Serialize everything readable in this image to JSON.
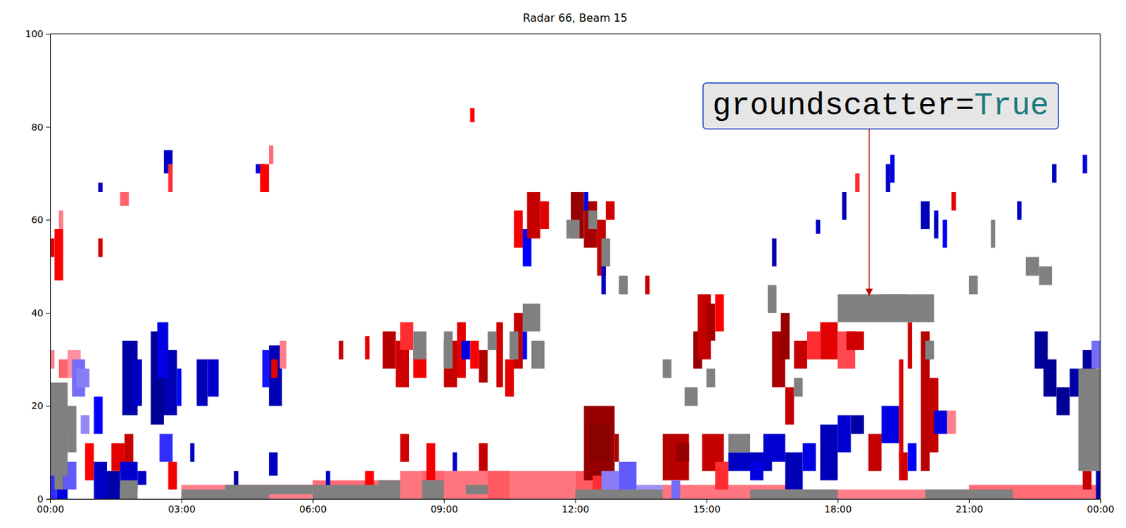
{
  "chart_data": {
    "type": "range-time",
    "title": "Radar 66, Beam 15",
    "xlim": [
      0,
      24
    ],
    "xticks": [
      {
        "value": 0,
        "label": "00:00"
      },
      {
        "value": 3,
        "label": "03:00"
      },
      {
        "value": 6,
        "label": "06:00"
      },
      {
        "value": 9,
        "label": "09:00"
      },
      {
        "value": 12,
        "label": "12:00"
      },
      {
        "value": 15,
        "label": "15:00"
      },
      {
        "value": 18,
        "label": "18:00"
      },
      {
        "value": 21,
        "label": "21:00"
      },
      {
        "value": 24,
        "label": "00:00"
      }
    ],
    "ylim": [
      0,
      100
    ],
    "yticks": [
      0,
      20,
      40,
      60,
      80,
      100
    ],
    "zlim": [
      -400,
      400
    ],
    "cells": [
      [
        3,
        6,
        0,
        3,
        60
      ],
      [
        6,
        8,
        0,
        4,
        80
      ],
      [
        8,
        12,
        0,
        6,
        70
      ],
      [
        12,
        12.5,
        0,
        6,
        100
      ],
      [
        14,
        17,
        0,
        3,
        70
      ],
      [
        17,
        21,
        0,
        2,
        60
      ],
      [
        21,
        24,
        0,
        3,
        80
      ],
      [
        8.5,
        9,
        2,
        6,
        90
      ],
      [
        10,
        10.5,
        0,
        6,
        100
      ],
      [
        0,
        0.5,
        14,
        20,
        50
      ],
      [
        0.4,
        0.7,
        26,
        32,
        40
      ],
      [
        0.7,
        0.9,
        14,
        18,
        -50
      ],
      [
        0,
        0.15,
        0,
        10,
        -150
      ],
      [
        0,
        0.3,
        10,
        14,
        120
      ],
      [
        0.15,
        0.4,
        0,
        6,
        -250
      ],
      [
        0.3,
        0.6,
        2,
        8,
        -100
      ],
      [
        0.5,
        0.8,
        22,
        30,
        -80
      ],
      [
        0.6,
        0.9,
        24,
        28,
        -60
      ],
      [
        0.8,
        1.0,
        4,
        12,
        200
      ],
      [
        1.0,
        1.3,
        0,
        8,
        -300
      ],
      [
        1.0,
        1.2,
        14,
        22,
        -200
      ],
      [
        1.3,
        1.6,
        0,
        6,
        -350
      ],
      [
        1.4,
        1.7,
        6,
        12,
        250
      ],
      [
        1.6,
        2.0,
        2,
        8,
        -280
      ],
      [
        1.7,
        1.9,
        8,
        14,
        300
      ],
      [
        0,
        0.1,
        28,
        32,
        60
      ],
      [
        0.2,
        0.4,
        26,
        30,
        90
      ],
      [
        2.0,
        2.2,
        3,
        6,
        -300
      ],
      [
        0,
        0.1,
        52,
        56,
        250
      ],
      [
        0.1,
        0.3,
        47,
        58,
        200
      ],
      [
        0.2,
        0.3,
        58,
        62,
        60
      ],
      [
        1.1,
        1.2,
        52,
        56,
        280
      ],
      [
        1.1,
        1.2,
        66,
        68,
        -320
      ],
      [
        1.6,
        1.8,
        63,
        66,
        90
      ],
      [
        2.6,
        2.8,
        70,
        75,
        -300
      ],
      [
        2.7,
        2.8,
        66,
        72,
        150
      ],
      [
        4.7,
        4.9,
        70,
        72,
        -250
      ],
      [
        4.8,
        5.0,
        66,
        72,
        200
      ],
      [
        5.0,
        5.1,
        72,
        76,
        80
      ],
      [
        1.65,
        2.0,
        18,
        34,
        -350
      ],
      [
        1.9,
        2.1,
        20,
        30,
        -300
      ],
      [
        2.3,
        2.6,
        16,
        36,
        -380
      ],
      [
        2.6,
        2.9,
        18,
        32,
        -330
      ],
      [
        2.45,
        2.7,
        26,
        38,
        -250
      ],
      [
        2.9,
        3.0,
        20,
        28,
        -200
      ],
      [
        3.35,
        3.6,
        20,
        30,
        -320
      ],
      [
        3.6,
        3.85,
        22,
        30,
        -280
      ],
      [
        4.85,
        5.0,
        24,
        32,
        -180
      ],
      [
        5.0,
        5.3,
        20,
        33,
        -330
      ],
      [
        5.05,
        5.2,
        26,
        30,
        250
      ],
      [
        5.25,
        5.4,
        28,
        34,
        60
      ],
      [
        2.5,
        2.8,
        8,
        14,
        -150
      ],
      [
        2.7,
        2.9,
        2,
        8,
        220
      ],
      [
        3.2,
        3.3,
        8,
        12,
        -300
      ],
      [
        4.2,
        4.3,
        2,
        6,
        -350
      ],
      [
        5.0,
        5.2,
        5,
        10,
        -300
      ],
      [
        6.3,
        6.4,
        2,
        6,
        -300
      ],
      [
        6.6,
        6.7,
        30,
        34,
        300
      ],
      [
        7.2,
        7.3,
        30,
        35,
        250
      ],
      [
        7.6,
        7.9,
        28,
        36,
        320
      ],
      [
        7.9,
        8.2,
        24,
        34,
        280
      ],
      [
        8.0,
        8.3,
        32,
        38,
        150
      ],
      [
        8.3,
        8.6,
        26,
        32,
        220
      ],
      [
        9.0,
        9.3,
        24,
        34,
        300
      ],
      [
        9.3,
        9.5,
        26,
        38,
        250
      ],
      [
        9.6,
        9.8,
        28,
        34,
        200
      ],
      [
        9.8,
        10.0,
        25,
        32,
        330
      ],
      [
        10.2,
        10.35,
        24,
        38,
        280
      ],
      [
        10.4,
        10.6,
        22,
        30,
        250
      ],
      [
        10.6,
        10.8,
        28,
        40,
        300
      ],
      [
        10.8,
        10.9,
        30,
        36,
        -200
      ],
      [
        9.4,
        9.6,
        30,
        34,
        -250
      ],
      [
        8.0,
        8.2,
        8,
        14,
        280
      ],
      [
        8.6,
        8.8,
        4,
        12,
        220
      ],
      [
        9.2,
        9.3,
        6,
        10,
        -300
      ],
      [
        9.8,
        10.0,
        6,
        12,
        300
      ],
      [
        7.2,
        7.4,
        2,
        6,
        200
      ],
      [
        9.6,
        9.7,
        81,
        84,
        200
      ],
      [
        10.6,
        10.8,
        54,
        62,
        220
      ],
      [
        10.8,
        11.0,
        50,
        58,
        -200
      ],
      [
        10.9,
        11.2,
        56,
        66,
        300
      ],
      [
        11.2,
        11.4,
        58,
        64,
        250
      ],
      [
        11.9,
        12.2,
        56,
        66,
        380
      ],
      [
        12.2,
        12.5,
        54,
        64,
        350
      ],
      [
        12.5,
        12.7,
        48,
        60,
        300
      ],
      [
        12.6,
        12.7,
        44,
        50,
        -300
      ],
      [
        12.7,
        12.9,
        60,
        64,
        280
      ],
      [
        12.2,
        12.3,
        62,
        66,
        -250
      ],
      [
        12.2,
        12.9,
        4,
        20,
        380
      ],
      [
        12.3,
        12.8,
        8,
        16,
        400
      ],
      [
        12.9,
        13.0,
        8,
        14,
        350
      ],
      [
        12.4,
        12.7,
        0,
        5,
        150
      ],
      [
        12.6,
        13.4,
        0,
        6,
        -60
      ],
      [
        13.0,
        13.4,
        2,
        8,
        -100
      ],
      [
        13.4,
        14.0,
        0,
        3,
        -40
      ],
      [
        13.6,
        13.7,
        44,
        48,
        300
      ],
      [
        14.0,
        14.6,
        4,
        14,
        320
      ],
      [
        14.3,
        14.6,
        8,
        12,
        380
      ],
      [
        14.7,
        14.9,
        28,
        36,
        380
      ],
      [
        14.8,
        15.1,
        30,
        44,
        300
      ],
      [
        15.0,
        15.2,
        34,
        42,
        350
      ],
      [
        15.2,
        15.4,
        36,
        44,
        200
      ],
      [
        14.9,
        15.4,
        6,
        14,
        300
      ],
      [
        15.2,
        15.5,
        2,
        8,
        150
      ],
      [
        14.2,
        14.4,
        0,
        4,
        -80
      ],
      [
        15.5,
        16.5,
        6,
        10,
        -300
      ],
      [
        16.0,
        16.3,
        4,
        8,
        -250
      ],
      [
        16.3,
        16.8,
        8,
        14,
        -280
      ],
      [
        16.8,
        17.2,
        2,
        10,
        -320
      ],
      [
        17.2,
        17.5,
        6,
        12,
        -250
      ],
      [
        16.5,
        16.8,
        24,
        36,
        350
      ],
      [
        16.7,
        16.9,
        30,
        40,
        380
      ],
      [
        17.0,
        17.3,
        28,
        34,
        300
      ],
      [
        17.3,
        17.6,
        30,
        36,
        150
      ],
      [
        17.6,
        18.0,
        30,
        38,
        250
      ],
      [
        18.0,
        18.4,
        28,
        36,
        120
      ],
      [
        18.2,
        18.6,
        32,
        36,
        280
      ],
      [
        16.8,
        17.0,
        16,
        24,
        300
      ],
      [
        17.6,
        18.0,
        4,
        16,
        -320
      ],
      [
        18.0,
        18.3,
        10,
        18,
        -280
      ],
      [
        18.3,
        18.6,
        14,
        18,
        -350
      ],
      [
        18.7,
        19.0,
        6,
        14,
        300
      ],
      [
        19.0,
        19.4,
        12,
        20,
        -250
      ],
      [
        19.4,
        19.6,
        4,
        10,
        280
      ],
      [
        19.6,
        19.8,
        6,
        12,
        -200
      ],
      [
        19.9,
        20.1,
        6,
        36,
        320
      ],
      [
        20.1,
        20.3,
        10,
        26,
        300
      ],
      [
        20.2,
        20.5,
        14,
        19,
        -250
      ],
      [
        20.5,
        20.7,
        14,
        19,
        60
      ],
      [
        19.6,
        19.7,
        28,
        38,
        280
      ],
      [
        19.4,
        19.5,
        8,
        30,
        260
      ],
      [
        16.5,
        16.6,
        50,
        56,
        -350
      ],
      [
        17.5,
        17.6,
        57,
        60,
        -300
      ],
      [
        18.1,
        18.2,
        60,
        66,
        -330
      ],
      [
        19.1,
        19.2,
        66,
        72,
        -300
      ],
      [
        19.2,
        19.3,
        68,
        74,
        -250
      ],
      [
        19.9,
        20.1,
        58,
        64,
        -320
      ],
      [
        20.2,
        20.3,
        56,
        62,
        -300
      ],
      [
        20.4,
        20.5,
        54,
        60,
        -200
      ],
      [
        22.1,
        22.2,
        60,
        64,
        -300
      ],
      [
        22.9,
        23.0,
        68,
        72,
        -300
      ],
      [
        23.6,
        23.7,
        70,
        74,
        -250
      ],
      [
        18.4,
        18.5,
        66,
        70,
        150
      ],
      [
        20.6,
        20.7,
        62,
        66,
        250
      ],
      [
        22.5,
        22.8,
        28,
        36,
        -380
      ],
      [
        22.7,
        23.0,
        22,
        30,
        -380
      ],
      [
        23.0,
        23.3,
        18,
        24,
        -380
      ],
      [
        23.3,
        23.6,
        22,
        28,
        -350
      ],
      [
        23.6,
        23.9,
        24,
        32,
        -360
      ],
      [
        23.9,
        24.0,
        0,
        8,
        -350
      ],
      [
        23.6,
        23.8,
        2,
        6,
        300
      ],
      [
        23.8,
        24,
        28,
        34,
        -80
      ]
    ],
    "groundscatter": [
      [
        0,
        0.4,
        5,
        25
      ],
      [
        0.1,
        0.3,
        2,
        8
      ],
      [
        0.4,
        0.6,
        10,
        20
      ],
      [
        1.6,
        2.0,
        0,
        4
      ],
      [
        3,
        5,
        0,
        2
      ],
      [
        4,
        6,
        1,
        3
      ],
      [
        6,
        8,
        0,
        3
      ],
      [
        7.5,
        8,
        2,
        4
      ],
      [
        8.5,
        9,
        0,
        4
      ],
      [
        9.5,
        10,
        1,
        3
      ],
      [
        8.3,
        8.6,
        30,
        36
      ],
      [
        9.0,
        9.2,
        28,
        36
      ],
      [
        10.0,
        10.2,
        32,
        36
      ],
      [
        10.5,
        10.7,
        30,
        36
      ],
      [
        10.8,
        11.2,
        36,
        42
      ],
      [
        11.0,
        11.3,
        28,
        34
      ],
      [
        11.8,
        12.1,
        56,
        60
      ],
      [
        12.3,
        12.5,
        58,
        62
      ],
      [
        12.6,
        12.8,
        50,
        56
      ],
      [
        13.0,
        13.2,
        44,
        48
      ],
      [
        14.5,
        14.8,
        20,
        24
      ],
      [
        15.0,
        15.2,
        24,
        28
      ],
      [
        15.5,
        16.0,
        10,
        14
      ],
      [
        16.4,
        16.6,
        40,
        46
      ],
      [
        17.0,
        17.2,
        22,
        26
      ],
      [
        18.0,
        20.2,
        38,
        44
      ],
      [
        18.3,
        18.8,
        40,
        43
      ],
      [
        19.0,
        19.6,
        42,
        44
      ],
      [
        20.0,
        20.2,
        30,
        34
      ],
      [
        21.0,
        21.2,
        44,
        48
      ],
      [
        21.5,
        21.6,
        54,
        60
      ],
      [
        22.3,
        22.6,
        48,
        52
      ],
      [
        22.6,
        22.9,
        46,
        50
      ],
      [
        23.5,
        24.0,
        6,
        28
      ],
      [
        23.7,
        24.0,
        14,
        22
      ],
      [
        12,
        14,
        0,
        2
      ],
      [
        16,
        18,
        0,
        2
      ],
      [
        20,
        22,
        0,
        2
      ],
      [
        14.0,
        14.2,
        26,
        30
      ]
    ],
    "annotations": [
      {
        "text": "groundscatter=True",
        "xy": [
          18.72,
          43.5
        ]
      }
    ]
  }
}
